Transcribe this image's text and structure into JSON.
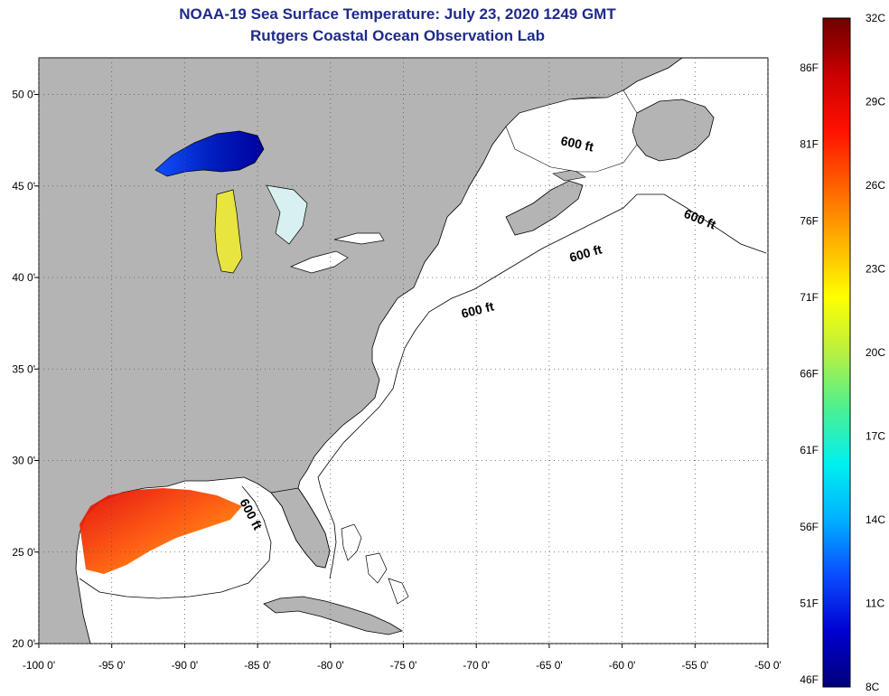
{
  "title": "NOAA-19 Sea Surface Temperature:  July 23, 2020 1249 GMT",
  "subtitle": "Rutgers Coastal Ocean Observation Lab",
  "map": {
    "lon_range": [
      -100,
      -50
    ],
    "lat_range": [
      20,
      52
    ],
    "lon_ticks": [
      "-100 0'",
      "-95 0'",
      "-90 0'",
      "-85 0'",
      "-80 0'",
      "-75 0'",
      "-70 0'",
      "-65 0'",
      "-60 0'",
      "-55 0'",
      "-50 0'"
    ],
    "lat_ticks": [
      "50 0'",
      "45 0'",
      "40 0'",
      "35 0'",
      "30 0'",
      "25 0'",
      "20 0'"
    ],
    "lat_tick_values": [
      50,
      45,
      40,
      35,
      30,
      25,
      20
    ],
    "land_color": "#b4b4b4",
    "water_color": "#ffffff",
    "grid": true,
    "isobath_labels": [
      "600 ft",
      "600 ft",
      "600 ft",
      "600 ft",
      "600 ft"
    ]
  },
  "colorbar": {
    "min_c": 8,
    "max_c": 32,
    "celsius_labels": [
      "32C",
      "29C",
      "26C",
      "23C",
      "20C",
      "17C",
      "14C",
      "11C",
      "8C"
    ],
    "fahrenheit_labels": [
      "86F",
      "81F",
      "76F",
      "71F",
      "66F",
      "61F",
      "56F",
      "51F",
      "46F"
    ],
    "colors": [
      "#00007a",
      "#0000d0",
      "#0a4cff",
      "#00b0ff",
      "#00f0f0",
      "#4cf090",
      "#b8f040",
      "#ffff00",
      "#ffb000",
      "#ff6000",
      "#ff1000",
      "#c80000",
      "#6e0000"
    ]
  }
}
